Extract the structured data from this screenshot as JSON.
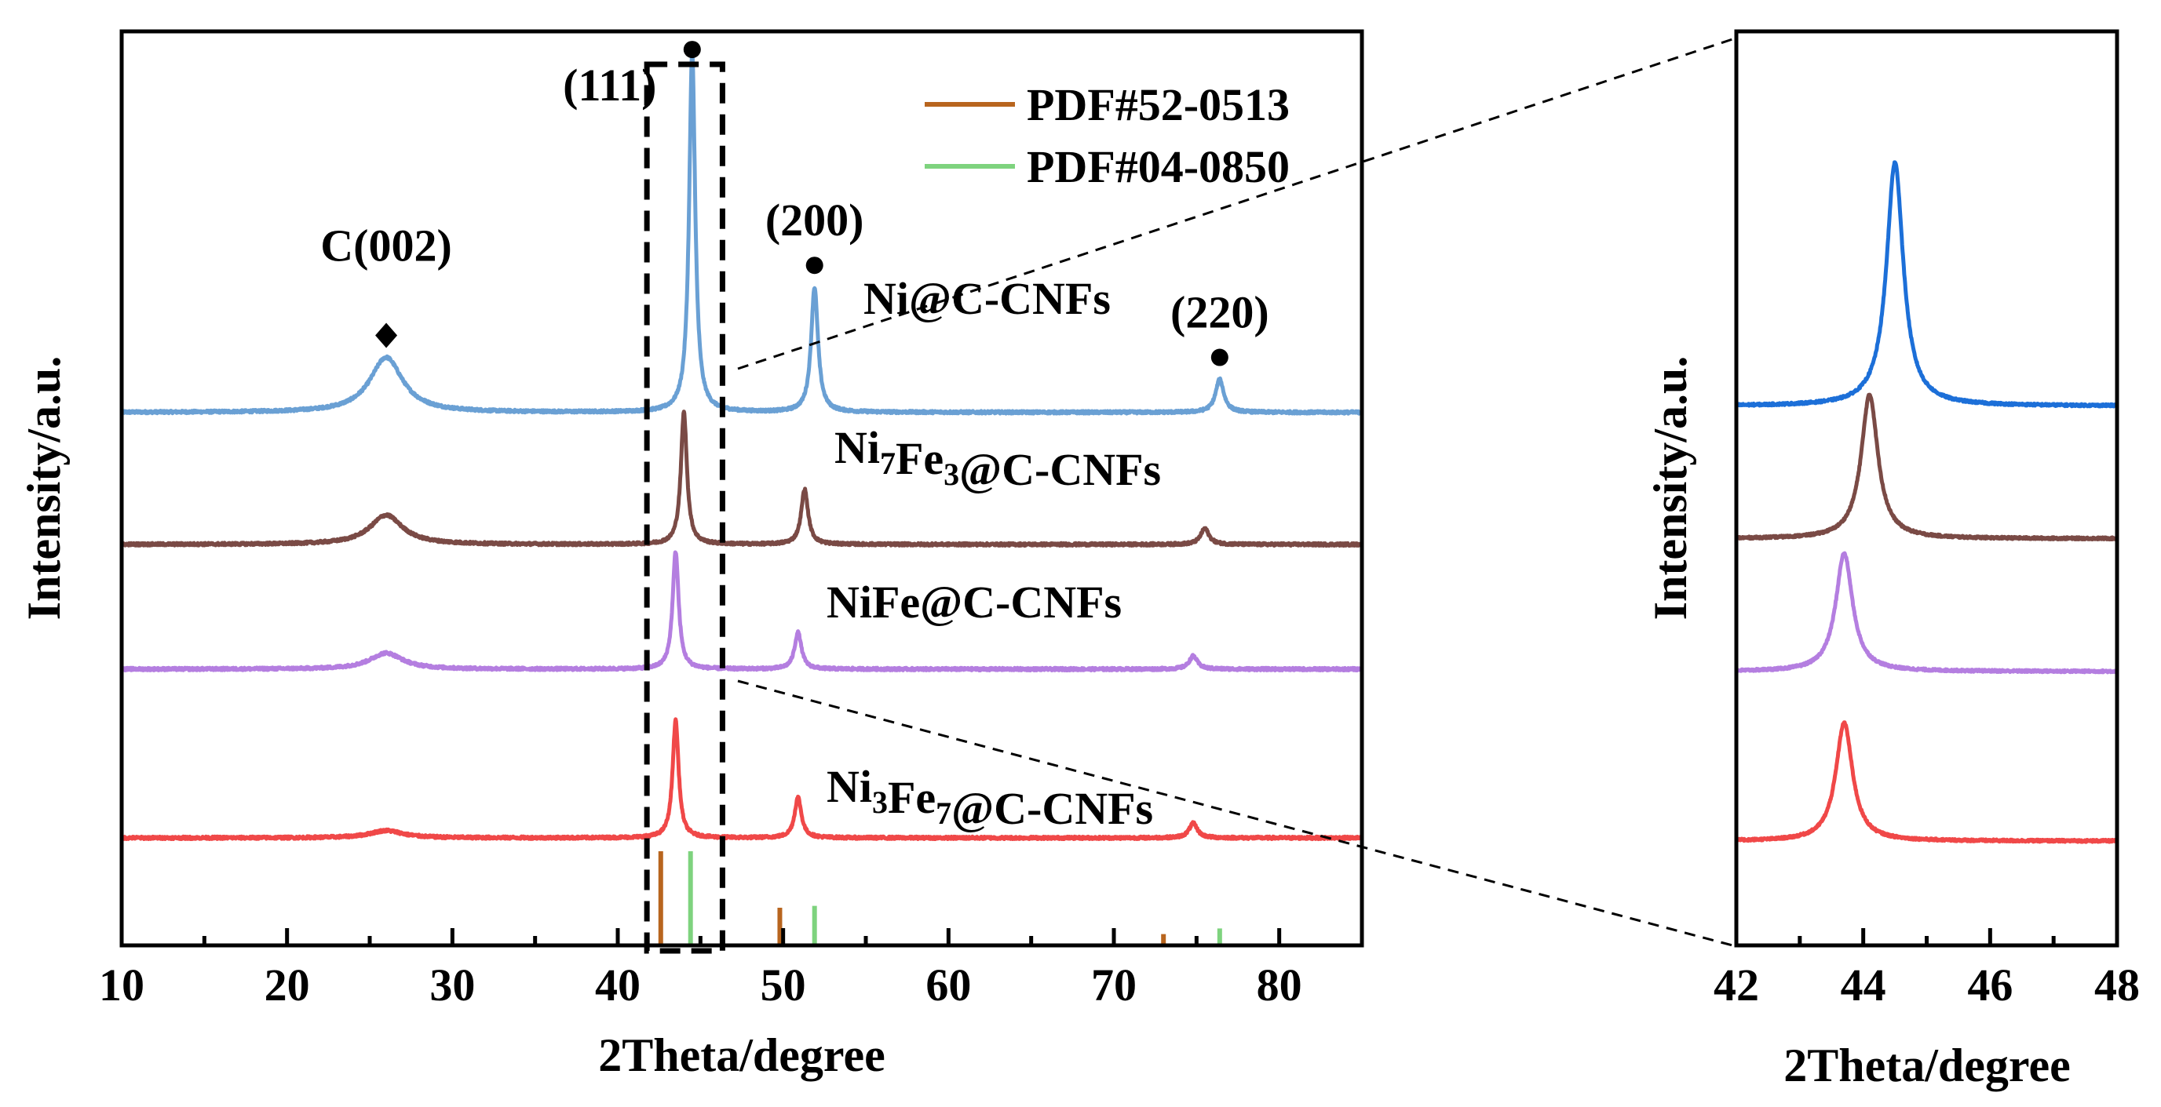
{
  "chart_data": [
    {
      "id": "main",
      "type": "line",
      "title": "",
      "xlabel": "2Theta/degree",
      "ylabel": "Intensity/a.u.",
      "xlim": [
        10,
        85
      ],
      "xticks": [
        10,
        20,
        30,
        40,
        50,
        60,
        70,
        80
      ],
      "yticks": "none",
      "series": [
        {
          "name": "Ni@C-CNFs",
          "color": "#6aa0d4",
          "baseline": 5.8,
          "peaks": [
            {
              "x": 26.0,
              "h": 0.75,
              "w": 1.2
            },
            {
              "x": 44.5,
              "h": 4.9,
              "w": 0.22
            },
            {
              "x": 51.9,
              "h": 1.7,
              "w": 0.25
            },
            {
              "x": 76.4,
              "h": 0.45,
              "w": 0.3
            }
          ]
        },
        {
          "name": "Ni7Fe3@C-CNFs",
          "color": "#7a4a45",
          "baseline": 4.0,
          "peaks": [
            {
              "x": 26.0,
              "h": 0.4,
              "w": 1.2
            },
            {
              "x": 44.0,
              "h": 1.8,
              "w": 0.22
            },
            {
              "x": 51.3,
              "h": 0.75,
              "w": 0.25
            },
            {
              "x": 75.5,
              "h": 0.22,
              "w": 0.3
            }
          ]
        },
        {
          "name": "NiFe@C-CNFs",
          "color": "#b47ee0",
          "baseline": 2.3,
          "peaks": [
            {
              "x": 26.0,
              "h": 0.22,
              "w": 1.2
            },
            {
              "x": 43.5,
              "h": 1.6,
              "w": 0.22
            },
            {
              "x": 50.9,
              "h": 0.5,
              "w": 0.25
            },
            {
              "x": 74.8,
              "h": 0.18,
              "w": 0.3
            }
          ]
        },
        {
          "name": "Ni3Fe7@C-CNFs",
          "color": "#f04848",
          "baseline": 0,
          "peaks": [
            {
              "x": 26.0,
              "h": 0.1,
              "w": 1.2
            },
            {
              "x": 43.5,
              "h": 1.6,
              "w": 0.22
            },
            {
              "x": 50.9,
              "h": 0.55,
              "w": 0.25
            },
            {
              "x": 74.8,
              "h": 0.2,
              "w": 0.3
            }
          ]
        }
      ],
      "reference_patterns": [
        {
          "name": "PDF#52-0513",
          "color": "#b8651e",
          "lines": [
            {
              "x": 42.6,
              "h": 1.0
            },
            {
              "x": 49.8,
              "h": 0.4
            },
            {
              "x": 73.0,
              "h": 0.12
            }
          ]
        },
        {
          "name": "PDF#04-0850",
          "color": "#7ed37e",
          "lines": [
            {
              "x": 44.4,
              "h": 1.0
            },
            {
              "x": 51.9,
              "h": 0.42
            },
            {
              "x": 76.4,
              "h": 0.18
            }
          ]
        }
      ],
      "annotations": [
        {
          "text": "C(002)",
          "marker": "diamond",
          "x": 26.0
        },
        {
          "text": "(111)",
          "marker": "circle",
          "x": 44.5
        },
        {
          "text": "(200)",
          "marker": "circle",
          "x": 51.9
        },
        {
          "text": "(220)",
          "marker": "circle",
          "x": 76.4
        }
      ],
      "zoom_box": [
        42,
        46
      ],
      "legend_position": "top-right"
    },
    {
      "id": "inset",
      "type": "line",
      "title": "",
      "xlabel": "2Theta/degree",
      "ylabel": "Intensity/a.u.",
      "xlim": [
        42,
        48
      ],
      "xticks": [
        42,
        44,
        46,
        48
      ],
      "yticks": "none",
      "series": [
        {
          "name": "Ni@C-CNFs",
          "color": "#1c6fd8",
          "baseline": 5.9,
          "peaks": [
            {
              "x": 44.5,
              "h": 3.3,
              "w": 0.16
            }
          ]
        },
        {
          "name": "Ni7Fe3@C-CNFs",
          "color": "#7a4a45",
          "baseline": 4.1,
          "peaks": [
            {
              "x": 44.1,
              "h": 1.95,
              "w": 0.16
            }
          ]
        },
        {
          "name": "NiFe@C-CNFs",
          "color": "#b47ee0",
          "baseline": 2.3,
          "peaks": [
            {
              "x": 43.7,
              "h": 1.6,
              "w": 0.16
            }
          ]
        },
        {
          "name": "Ni3Fe7@C-CNFs",
          "color": "#f04848",
          "baseline": 0,
          "peaks": [
            {
              "x": 43.7,
              "h": 1.6,
              "w": 0.16
            }
          ]
        }
      ]
    }
  ]
}
